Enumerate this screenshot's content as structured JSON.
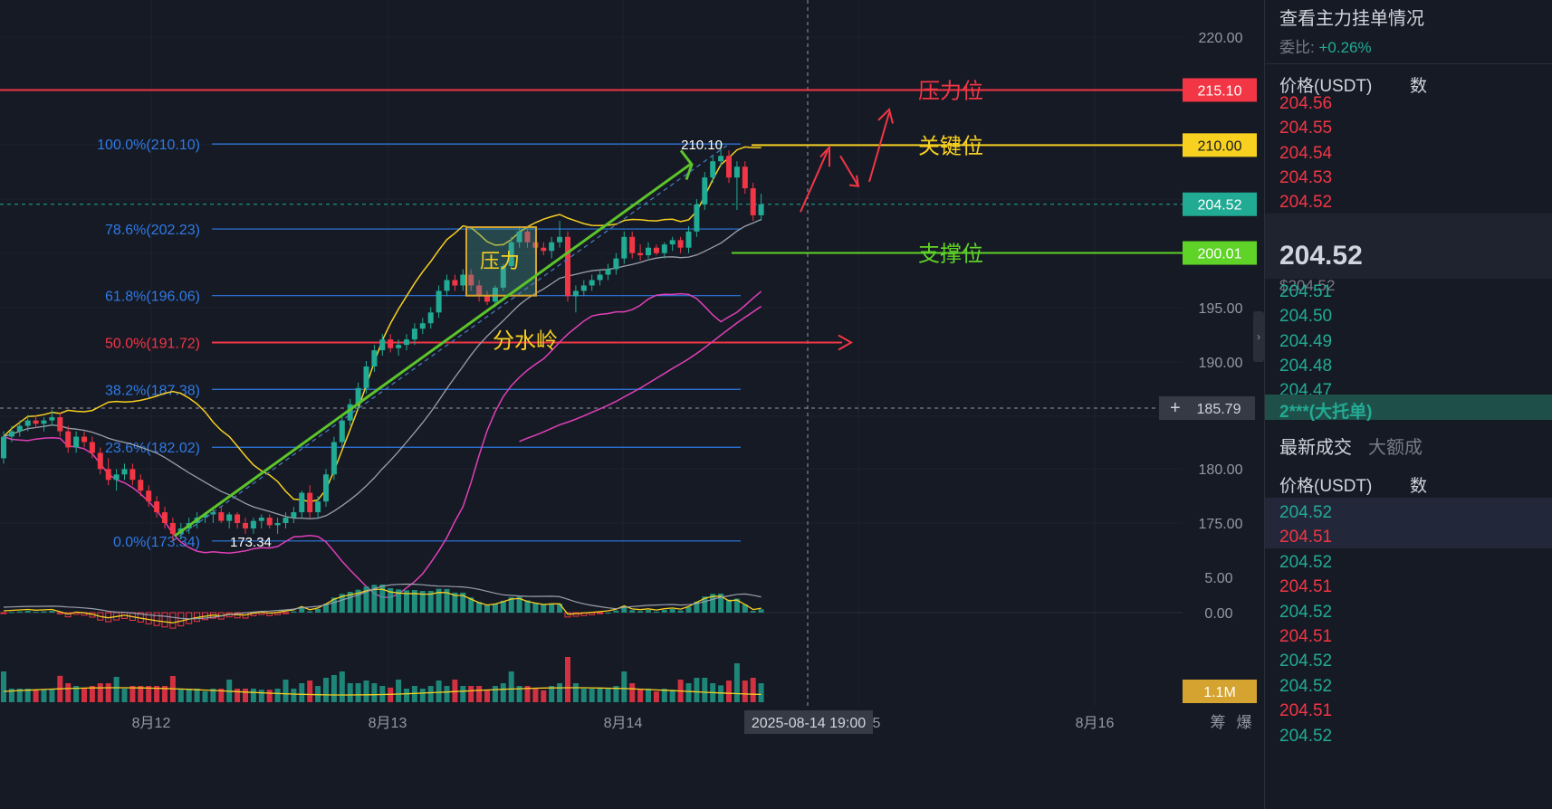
{
  "chart_data": {
    "type": "candlestick",
    "symbol_quote": "USDT",
    "y_axis": {
      "ticks": [
        "220.00",
        "195.00",
        "190.00",
        "180.00",
        "175.00"
      ]
    },
    "x_axis": {
      "ticks": [
        "8月12",
        "8月13",
        "8月14",
        "8月16"
      ],
      "crosshair_label": "2025-08-14 19:00",
      "crosshair_price": "185.79"
    },
    "price_tags": [
      {
        "value": "215.10",
        "color": "#f23645"
      },
      {
        "value": "210.00",
        "color": "#f7d020"
      },
      {
        "value": "204.52",
        "color": "#22ab94"
      },
      {
        "value": "200.01",
        "color": "#5fd327"
      }
    ],
    "fib_levels": [
      {
        "label": "100.0%(210.10)",
        "price": 210.1
      },
      {
        "label": "78.6%(202.23)",
        "price": 202.23
      },
      {
        "label": "61.8%(196.06)",
        "price": 196.06
      },
      {
        "label": "50.0%(191.72)",
        "price": 191.72
      },
      {
        "label": "38.2%(187.38)",
        "price": 187.38
      },
      {
        "label": "23.6%(182.02)",
        "price": 182.02
      },
      {
        "label": "0.0%(173.34)",
        "price": 173.34
      }
    ],
    "annotations": {
      "pressure_level": "压力位",
      "key_level": "关键位",
      "support_level": "支撑位",
      "pressure_box": "压力",
      "watershed": "分水岭",
      "high_label": "210.10",
      "low_label": "173.34"
    },
    "candles": [
      {
        "o": 181.0,
        "h": 183.5,
        "l": 180.5,
        "c": 183.0
      },
      {
        "o": 183.0,
        "h": 184.0,
        "l": 182.5,
        "c": 183.5
      },
      {
        "o": 183.5,
        "h": 184.5,
        "l": 183.0,
        "c": 184.0
      },
      {
        "o": 184.0,
        "h": 185.0,
        "l": 183.5,
        "c": 184.5
      },
      {
        "o": 184.5,
        "h": 185.0,
        "l": 183.8,
        "c": 184.2
      },
      {
        "o": 184.2,
        "h": 184.8,
        "l": 183.5,
        "c": 184.5
      },
      {
        "o": 184.5,
        "h": 185.5,
        "l": 184.0,
        "c": 184.8
      },
      {
        "o": 184.8,
        "h": 185.2,
        "l": 183.0,
        "c": 183.5
      },
      {
        "o": 183.5,
        "h": 184.0,
        "l": 181.5,
        "c": 182.0
      },
      {
        "o": 182.0,
        "h": 183.5,
        "l": 181.5,
        "c": 183.0
      },
      {
        "o": 183.0,
        "h": 183.5,
        "l": 182.0,
        "c": 182.5
      },
      {
        "o": 182.5,
        "h": 183.0,
        "l": 181.0,
        "c": 181.5
      },
      {
        "o": 181.5,
        "h": 182.0,
        "l": 179.5,
        "c": 180.0
      },
      {
        "o": 180.0,
        "h": 181.0,
        "l": 178.5,
        "c": 179.0
      },
      {
        "o": 179.0,
        "h": 180.0,
        "l": 178.0,
        "c": 179.5
      },
      {
        "o": 179.5,
        "h": 180.5,
        "l": 179.0,
        "c": 180.0
      },
      {
        "o": 180.0,
        "h": 180.5,
        "l": 178.5,
        "c": 179.0
      },
      {
        "o": 179.0,
        "h": 179.5,
        "l": 177.5,
        "c": 178.0
      },
      {
        "o": 178.0,
        "h": 178.5,
        "l": 176.5,
        "c": 177.0
      },
      {
        "o": 177.0,
        "h": 177.5,
        "l": 175.5,
        "c": 176.0
      },
      {
        "o": 176.0,
        "h": 176.5,
        "l": 174.5,
        "c": 175.0
      },
      {
        "o": 175.0,
        "h": 175.5,
        "l": 173.34,
        "c": 174.0
      },
      {
        "o": 174.0,
        "h": 175.0,
        "l": 173.5,
        "c": 174.5
      },
      {
        "o": 174.5,
        "h": 175.5,
        "l": 174.0,
        "c": 175.0
      },
      {
        "o": 175.0,
        "h": 176.0,
        "l": 174.5,
        "c": 175.5
      },
      {
        "o": 175.5,
        "h": 176.0,
        "l": 175.0,
        "c": 175.8
      },
      {
        "o": 175.8,
        "h": 176.5,
        "l": 175.0,
        "c": 176.0
      },
      {
        "o": 176.0,
        "h": 176.5,
        "l": 175.0,
        "c": 175.2
      },
      {
        "o": 175.2,
        "h": 176.0,
        "l": 174.5,
        "c": 175.8
      },
      {
        "o": 175.8,
        "h": 176.0,
        "l": 174.5,
        "c": 175.0
      },
      {
        "o": 175.0,
        "h": 175.5,
        "l": 174.0,
        "c": 174.5
      },
      {
        "o": 174.5,
        "h": 175.5,
        "l": 174.0,
        "c": 175.2
      },
      {
        "o": 175.2,
        "h": 175.8,
        "l": 174.5,
        "c": 175.5
      },
      {
        "o": 175.5,
        "h": 175.8,
        "l": 174.5,
        "c": 174.8
      },
      {
        "o": 174.8,
        "h": 175.5,
        "l": 174.0,
        "c": 175.0
      },
      {
        "o": 175.0,
        "h": 176.0,
        "l": 174.5,
        "c": 175.5
      },
      {
        "o": 175.5,
        "h": 176.5,
        "l": 175.0,
        "c": 176.0
      },
      {
        "o": 176.0,
        "h": 178.0,
        "l": 175.5,
        "c": 177.8
      },
      {
        "o": 177.8,
        "h": 178.5,
        "l": 175.5,
        "c": 176.0
      },
      {
        "o": 176.0,
        "h": 177.5,
        "l": 175.5,
        "c": 177.0
      },
      {
        "o": 177.0,
        "h": 180.0,
        "l": 176.5,
        "c": 179.5
      },
      {
        "o": 179.5,
        "h": 183.0,
        "l": 179.0,
        "c": 182.5
      },
      {
        "o": 182.5,
        "h": 185.0,
        "l": 182.0,
        "c": 184.5
      },
      {
        "o": 184.5,
        "h": 186.5,
        "l": 184.0,
        "c": 186.0
      },
      {
        "o": 186.0,
        "h": 188.0,
        "l": 185.5,
        "c": 187.5
      },
      {
        "o": 187.5,
        "h": 190.0,
        "l": 187.0,
        "c": 189.5
      },
      {
        "o": 189.5,
        "h": 191.5,
        "l": 189.0,
        "c": 191.0
      },
      {
        "o": 191.0,
        "h": 192.5,
        "l": 190.5,
        "c": 192.0
      },
      {
        "o": 192.0,
        "h": 192.5,
        "l": 190.8,
        "c": 191.2
      },
      {
        "o": 191.2,
        "h": 192.0,
        "l": 190.5,
        "c": 191.5
      },
      {
        "o": 191.5,
        "h": 192.5,
        "l": 191.0,
        "c": 192.0
      },
      {
        "o": 192.0,
        "h": 193.5,
        "l": 191.5,
        "c": 193.0
      },
      {
        "o": 193.0,
        "h": 194.0,
        "l": 192.5,
        "c": 193.5
      },
      {
        "o": 193.5,
        "h": 195.0,
        "l": 193.0,
        "c": 194.5
      },
      {
        "o": 194.5,
        "h": 197.0,
        "l": 194.0,
        "c": 196.5
      },
      {
        "o": 196.5,
        "h": 198.0,
        "l": 196.0,
        "c": 197.5
      },
      {
        "o": 197.5,
        "h": 198.0,
        "l": 196.5,
        "c": 197.0
      },
      {
        "o": 197.0,
        "h": 198.5,
        "l": 196.5,
        "c": 198.0
      },
      {
        "o": 198.0,
        "h": 198.5,
        "l": 196.5,
        "c": 197.0
      },
      {
        "o": 197.0,
        "h": 197.5,
        "l": 195.5,
        "c": 196.0
      },
      {
        "o": 196.0,
        "h": 196.5,
        "l": 195.2,
        "c": 195.5
      },
      {
        "o": 195.5,
        "h": 197.0,
        "l": 195.0,
        "c": 196.8
      },
      {
        "o": 196.8,
        "h": 199.0,
        "l": 196.5,
        "c": 198.8
      },
      {
        "o": 198.8,
        "h": 201.5,
        "l": 198.5,
        "c": 201.0
      },
      {
        "o": 201.0,
        "h": 202.5,
        "l": 200.5,
        "c": 202.0
      },
      {
        "o": 202.0,
        "h": 202.5,
        "l": 200.5,
        "c": 201.0
      },
      {
        "o": 201.0,
        "h": 201.5,
        "l": 200.0,
        "c": 200.5
      },
      {
        "o": 200.5,
        "h": 201.0,
        "l": 199.8,
        "c": 200.2
      },
      {
        "o": 200.2,
        "h": 201.5,
        "l": 199.5,
        "c": 201.0
      },
      {
        "o": 201.0,
        "h": 203.0,
        "l": 200.5,
        "c": 201.5
      },
      {
        "o": 201.5,
        "h": 202.0,
        "l": 195.5,
        "c": 196.0
      },
      {
        "o": 196.0,
        "h": 197.0,
        "l": 194.5,
        "c": 196.5
      },
      {
        "o": 196.5,
        "h": 197.5,
        "l": 196.0,
        "c": 197.0
      },
      {
        "o": 197.0,
        "h": 198.0,
        "l": 196.5,
        "c": 197.5
      },
      {
        "o": 197.5,
        "h": 198.5,
        "l": 197.0,
        "c": 198.0
      },
      {
        "o": 198.0,
        "h": 199.0,
        "l": 197.5,
        "c": 198.5
      },
      {
        "o": 198.5,
        "h": 200.0,
        "l": 198.0,
        "c": 199.5
      },
      {
        "o": 199.5,
        "h": 202.0,
        "l": 199.0,
        "c": 201.5
      },
      {
        "o": 201.5,
        "h": 202.0,
        "l": 199.5,
        "c": 200.0
      },
      {
        "o": 200.0,
        "h": 200.8,
        "l": 199.3,
        "c": 199.8
      },
      {
        "o": 199.8,
        "h": 201.0,
        "l": 199.5,
        "c": 200.5
      },
      {
        "o": 200.5,
        "h": 200.8,
        "l": 199.8,
        "c": 200.0
      },
      {
        "o": 200.0,
        "h": 201.0,
        "l": 199.5,
        "c": 200.8
      },
      {
        "o": 200.8,
        "h": 201.5,
        "l": 200.2,
        "c": 201.2
      },
      {
        "o": 201.2,
        "h": 201.5,
        "l": 200.0,
        "c": 200.5
      },
      {
        "o": 200.5,
        "h": 202.5,
        "l": 200.0,
        "c": 202.0
      },
      {
        "o": 202.0,
        "h": 205.0,
        "l": 201.5,
        "c": 204.5
      },
      {
        "o": 204.5,
        "h": 207.5,
        "l": 204.0,
        "c": 207.0
      },
      {
        "o": 207.0,
        "h": 209.0,
        "l": 206.5,
        "c": 208.5
      },
      {
        "o": 208.5,
        "h": 210.1,
        "l": 208.0,
        "c": 209.0
      },
      {
        "o": 209.0,
        "h": 209.5,
        "l": 206.5,
        "c": 207.0
      },
      {
        "o": 207.0,
        "h": 208.5,
        "l": 204.0,
        "c": 208.0
      },
      {
        "o": 208.0,
        "h": 208.5,
        "l": 205.5,
        "c": 206.0
      },
      {
        "o": 206.0,
        "h": 206.5,
        "l": 203.0,
        "c": 203.5
      },
      {
        "o": 203.5,
        "h": 205.5,
        "l": 203.0,
        "c": 204.52
      }
    ]
  },
  "sidebar": {
    "title": "查看主力挂单情况",
    "ratio_label": "委比:",
    "ratio_value": "+0.26%",
    "col_price": "价格(USDT)",
    "col_qty": "数",
    "asks": [
      "204.56",
      "204.55",
      "204.54",
      "204.53",
      "204.52"
    ],
    "last_price": "204.52",
    "last_price_usd": "$204.52",
    "bids": [
      "204.51",
      "204.50",
      "204.49",
      "204.48",
      "204.47"
    ],
    "big_order": "2***(大托单)",
    "tab_latest": "最新成交",
    "tab_large": "大额成",
    "col_price2": "价格(USDT)",
    "col_qty2": "数",
    "trades": [
      {
        "p": "204.52",
        "side": "buy"
      },
      {
        "p": "204.51",
        "side": "sell"
      },
      {
        "p": "204.52",
        "side": "buy"
      },
      {
        "p": "204.51",
        "side": "sell"
      },
      {
        "p": "204.52",
        "side": "buy"
      },
      {
        "p": "204.51",
        "side": "sell"
      },
      {
        "p": "204.52",
        "side": "buy"
      },
      {
        "p": "204.52",
        "side": "buy"
      },
      {
        "p": "204.51",
        "side": "sell"
      },
      {
        "p": "204.52",
        "side": "buy"
      }
    ]
  },
  "macd": {
    "ticks": [
      "5.00",
      "0.00"
    ]
  },
  "volume": {
    "label": "1.1M"
  },
  "footer": {
    "btn1": "筹",
    "btn2": "爆",
    "x_partial": "5"
  },
  "colors": {
    "up": "#22ab94",
    "down": "#f23645",
    "fib": "#2f7ae5",
    "yellow": "#f7d020",
    "green": "#5fd327",
    "pink": "#e040b8",
    "gray": "#9aa0ab"
  }
}
